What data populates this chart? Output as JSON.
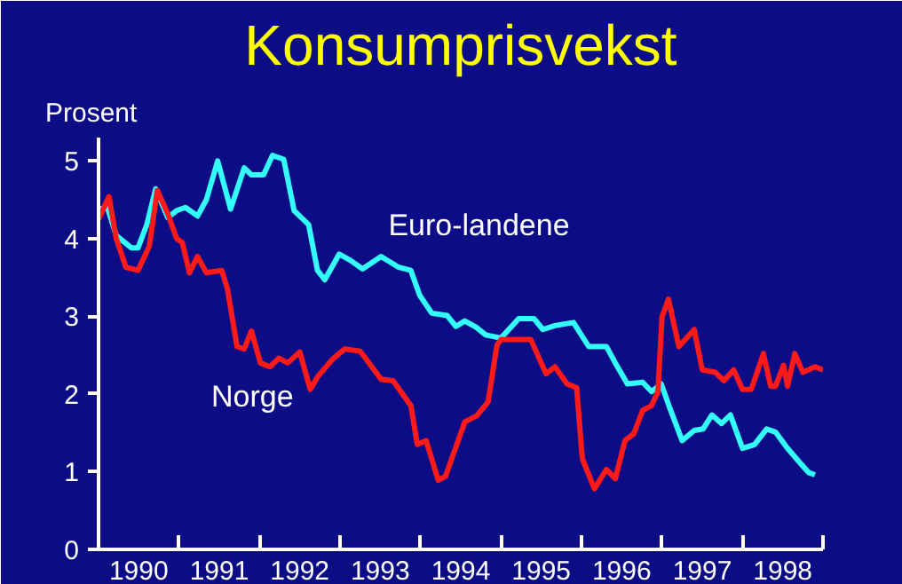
{
  "chart_data": {
    "type": "line",
    "title": "Konsumprisvekst",
    "ylabel": "Prosent",
    "xlim": [
      1990,
      1999
    ],
    "ylim": [
      0,
      5.3
    ],
    "yticks": [
      0,
      1,
      2,
      3,
      4,
      5
    ],
    "xticks": [
      {
        "value": 1990,
        "label": null
      },
      {
        "value": 1991,
        "label": null
      },
      {
        "value": 1992,
        "label": null
      },
      {
        "value": 1993,
        "label": null
      },
      {
        "value": 1994,
        "label": null
      },
      {
        "value": 1995,
        "label": null
      },
      {
        "value": 1996,
        "label": null
      },
      {
        "value": 1997,
        "label": null
      },
      {
        "value": 1998,
        "label": null
      },
      {
        "value": 1999,
        "label": null
      },
      {
        "value": 1990.5,
        "label": "1990"
      },
      {
        "value": 1991.5,
        "label": "1991"
      },
      {
        "value": 1992.5,
        "label": "1992"
      },
      {
        "value": 1993.5,
        "label": "1993"
      },
      {
        "value": 1994.5,
        "label": "1994"
      },
      {
        "value": 1995.5,
        "label": "1995"
      },
      {
        "value": 1996.5,
        "label": "1996"
      },
      {
        "value": 1997.5,
        "label": "1997"
      },
      {
        "value": 1998.5,
        "label": "1998"
      }
    ],
    "grid": false,
    "legend": false,
    "marker": "none",
    "line_style": "solid",
    "series": [
      {
        "name": "Euro-landene",
        "color": "#33ffff",
        "x": [
          1990.0,
          1990.11,
          1990.22,
          1990.41,
          1990.49,
          1990.6,
          1990.71,
          1990.86,
          1990.97,
          1991.08,
          1991.23,
          1991.34,
          1991.48,
          1991.64,
          1991.81,
          1991.9,
          1992.05,
          1992.16,
          1992.3,
          1992.43,
          1992.61,
          1992.72,
          1992.81,
          1992.99,
          1993.13,
          1993.28,
          1993.51,
          1993.73,
          1993.88,
          1993.99,
          1994.14,
          1994.33,
          1994.44,
          1994.55,
          1994.69,
          1994.81,
          1995.0,
          1995.22,
          1995.41,
          1995.52,
          1995.67,
          1995.9,
          1996.09,
          1996.31,
          1996.42,
          1996.57,
          1996.76,
          1996.87,
          1996.99,
          1997.1,
          1997.25,
          1997.4,
          1997.51,
          1997.62,
          1997.74,
          1997.85,
          1998.0,
          1998.15,
          1998.3,
          1998.41,
          1998.56,
          1998.71,
          1998.82,
          1998.9
        ],
        "values": [
          4.38,
          4.4,
          4.04,
          3.88,
          3.88,
          4.18,
          4.64,
          4.27,
          4.36,
          4.4,
          4.29,
          4.5,
          5.0,
          4.38,
          4.91,
          4.82,
          4.82,
          5.07,
          5.02,
          4.36,
          4.18,
          3.59,
          3.47,
          3.8,
          3.72,
          3.61,
          3.77,
          3.63,
          3.59,
          3.27,
          3.04,
          3.01,
          2.87,
          2.94,
          2.86,
          2.76,
          2.72,
          2.97,
          2.97,
          2.83,
          2.88,
          2.92,
          2.61,
          2.61,
          2.4,
          2.13,
          2.15,
          2.03,
          2.13,
          1.81,
          1.4,
          1.53,
          1.55,
          1.73,
          1.62,
          1.73,
          1.3,
          1.35,
          1.55,
          1.51,
          1.3,
          1.12,
          0.99,
          0.96
        ]
      },
      {
        "name": "Norge",
        "color": "#ff1a1a",
        "x": [
          1990.0,
          1990.13,
          1990.22,
          1990.34,
          1990.49,
          1990.63,
          1990.73,
          1990.86,
          1990.97,
          1991.04,
          1991.13,
          1991.23,
          1991.34,
          1991.53,
          1991.6,
          1991.72,
          1991.81,
          1991.9,
          1992.01,
          1992.13,
          1992.24,
          1992.35,
          1992.5,
          1992.63,
          1992.72,
          1992.91,
          1993.06,
          1993.25,
          1993.36,
          1993.51,
          1993.66,
          1993.88,
          1993.96,
          1994.07,
          1994.22,
          1994.31,
          1994.55,
          1994.7,
          1994.84,
          1994.95,
          1995.0,
          1995.37,
          1995.56,
          1995.67,
          1995.82,
          1995.94,
          1996.01,
          1996.16,
          1996.31,
          1996.42,
          1996.54,
          1996.65,
          1996.76,
          1996.87,
          1996.95,
          1997.0,
          1997.08,
          1997.21,
          1997.4,
          1997.5,
          1997.66,
          1997.77,
          1997.89,
          1998.0,
          1998.11,
          1998.26,
          1998.35,
          1998.41,
          1998.51,
          1998.56,
          1998.65,
          1998.75,
          1998.9,
          1999.0
        ],
        "values": [
          4.25,
          4.54,
          4.0,
          3.63,
          3.59,
          3.9,
          4.62,
          4.32,
          4.0,
          3.95,
          3.56,
          3.77,
          3.56,
          3.59,
          3.36,
          2.61,
          2.58,
          2.81,
          2.4,
          2.35,
          2.46,
          2.4,
          2.54,
          2.06,
          2.22,
          2.45,
          2.58,
          2.55,
          2.4,
          2.19,
          2.17,
          1.85,
          1.35,
          1.4,
          0.89,
          0.94,
          1.64,
          1.72,
          1.9,
          2.63,
          2.7,
          2.7,
          2.26,
          2.35,
          2.13,
          2.08,
          1.17,
          0.78,
          1.03,
          0.91,
          1.4,
          1.49,
          1.79,
          1.85,
          2.03,
          2.99,
          3.22,
          2.61,
          2.83,
          2.31,
          2.28,
          2.17,
          2.31,
          2.06,
          2.06,
          2.52,
          2.1,
          2.1,
          2.37,
          2.1,
          2.52,
          2.28,
          2.35,
          2.31
        ]
      }
    ]
  }
}
